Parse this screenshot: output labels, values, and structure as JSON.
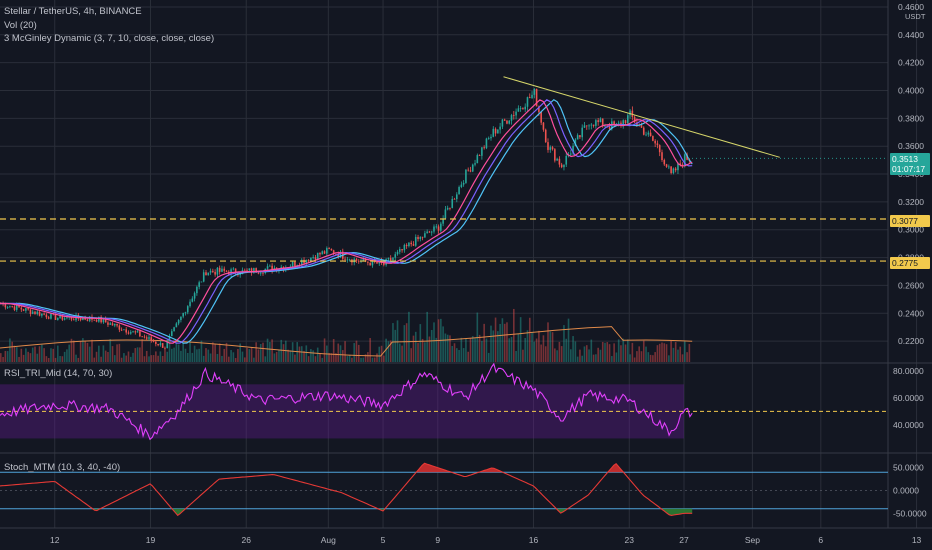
{
  "legend": {
    "symbol": "Stellar / TetherUS, 4h, BINANCE",
    "volume": "Vol (20)",
    "mcginley": "3 McGinley Dynamic (3, 7, 10, close, close, close)",
    "rsi": "RSI_TRI_Mid (14, 70, 30)",
    "stoch": "Stoch_MTM (10, 3, 40, -40)"
  },
  "currency": "USDT",
  "colors": {
    "background": "#131722",
    "grid": "#2a2e39",
    "candle_up": "#26a69a",
    "candle_down": "#ef5350",
    "md_fast": "#ff4f9e",
    "md_mid": "#7b61ff",
    "md_slow": "#4fc3f7",
    "trendline": "#d6d66a",
    "support": "#f2c94c",
    "rsi_line": "#e040fb",
    "rsi_band": "#6a1b9a",
    "stoch_line": "#e53935",
    "stoch_high_fill": "#d32f2f",
    "stoch_low_fill": "#2e7d32"
  },
  "price_tags": {
    "current": "0.3513",
    "countdown": "01:07:17",
    "support_upper": "0.3077",
    "support_lower": "0.2775"
  },
  "chart_data": {
    "type": "line",
    "price_axis": {
      "ticks": [
        "0.4600",
        "0.4400",
        "0.4200",
        "0.4000",
        "0.3800",
        "0.3600",
        "0.3400",
        "0.3200",
        "0.3000",
        "0.2800",
        "0.2600",
        "0.2400",
        "0.2200"
      ],
      "range": [
        0.205,
        0.465
      ]
    },
    "x_axis": {
      "ticks": [
        "12",
        "19",
        "26",
        "Aug",
        "5",
        "9",
        "16",
        "23",
        "27",
        "Sep",
        "6",
        "13"
      ]
    },
    "price_series": {
      "name": "XLM/USDT close (approx.)",
      "x": [
        "Jul 8",
        "Jul 12",
        "Jul 15",
        "Jul 18",
        "Jul 20",
        "Jul 23",
        "Jul 26",
        "Jul 29",
        "Aug 1",
        "Aug 3",
        "Aug 5",
        "Aug 7",
        "Aug 9",
        "Aug 11",
        "Aug 13",
        "Aug 16",
        "Aug 17",
        "Aug 18",
        "Aug 20",
        "Aug 22",
        "Aug 23",
        "Aug 25",
        "Aug 26",
        "Aug 27"
      ],
      "y": [
        0.247,
        0.237,
        0.236,
        0.225,
        0.216,
        0.27,
        0.27,
        0.274,
        0.285,
        0.278,
        0.275,
        0.29,
        0.302,
        0.34,
        0.37,
        0.398,
        0.36,
        0.346,
        0.378,
        0.374,
        0.382,
        0.36,
        0.339,
        0.3513
      ]
    },
    "trendline": {
      "from": [
        "Aug 16",
        0.407
      ],
      "to": [
        "Sep 3",
        0.352
      ]
    },
    "support_levels": [
      0.3077,
      0.2775
    ],
    "rsi": {
      "axis_ticks": [
        "80.0000",
        "60.0000",
        "40.0000"
      ],
      "range": [
        20,
        85
      ],
      "mid_line": 50,
      "band": [
        30,
        70
      ],
      "x": [
        "Jul 8",
        "Jul 12",
        "Jul 16",
        "Jul 19",
        "Jul 21",
        "Jul 23",
        "Jul 27",
        "Aug 1",
        "Aug 5",
        "Aug 8",
        "Aug 11",
        "Aug 13",
        "Aug 16",
        "Aug 18",
        "Aug 20",
        "Aug 23",
        "Aug 26",
        "Aug 27"
      ],
      "y": [
        48,
        55,
        52,
        32,
        50,
        78,
        58,
        62,
        55,
        78,
        60,
        82,
        66,
        45,
        62,
        58,
        35,
        49
      ]
    },
    "stoch_mtm": {
      "axis_ticks": [
        "50.0000",
        "0.0000",
        "-50.0000"
      ],
      "range": [
        -80,
        80
      ],
      "levels": [
        40,
        -40
      ],
      "x": [
        "Jul 8",
        "Jul 12",
        "Jul 15",
        "Jul 19",
        "Jul 21",
        "Jul 24",
        "Jul 28",
        "Aug 2",
        "Aug 5",
        "Aug 8",
        "Aug 11",
        "Aug 13",
        "Aug 16",
        "Aug 18",
        "Aug 20",
        "Aug 22",
        "Aug 24",
        "Aug 26",
        "Aug 27"
      ],
      "y": [
        10,
        20,
        -45,
        15,
        -55,
        25,
        35,
        -5,
        -45,
        60,
        30,
        50,
        10,
        -50,
        -10,
        60,
        -10,
        -55,
        -50
      ]
    }
  }
}
